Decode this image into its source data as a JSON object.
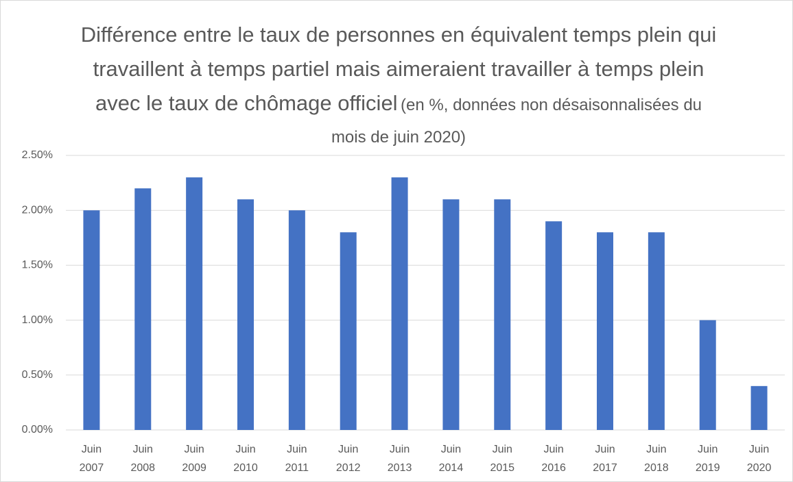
{
  "chart_data": {
    "type": "bar",
    "title": "Différence entre le taux de personnes en équivalent temps plein qui travaillent à temps partiel mais aimeraient travailler à temps plein avec le taux de chômage officiel",
    "subtitle": "(en %, données non désaisonnalisées du mois de juin 2020)",
    "categories": [
      "Juin 2007",
      "Juin 2008",
      "Juin 2009",
      "Juin 2010",
      "Juin 2011",
      "Juin 2012",
      "Juin 2013",
      "Juin 2014",
      "Juin 2015",
      "Juin 2016",
      "Juin 2017",
      "Juin 2018",
      "Juin 2019",
      "Juin 2020"
    ],
    "values": [
      2.0,
      2.2,
      2.3,
      2.1,
      2.0,
      1.8,
      2.3,
      2.1,
      2.1,
      1.9,
      1.8,
      1.8,
      1.0,
      0.4
    ],
    "color": "#4472c4",
    "ylim": [
      0,
      2.5
    ],
    "yticks": [
      {
        "value": 0,
        "label": "0.00%"
      },
      {
        "value": 0.5,
        "label": "0.50%"
      },
      {
        "value": 1,
        "label": "1.00%"
      },
      {
        "value": 1.5,
        "label": "1.50%"
      },
      {
        "value": 2,
        "label": "2.00%"
      },
      {
        "value": 2.5,
        "label": "2.50%"
      }
    ],
    "grid": true
  }
}
